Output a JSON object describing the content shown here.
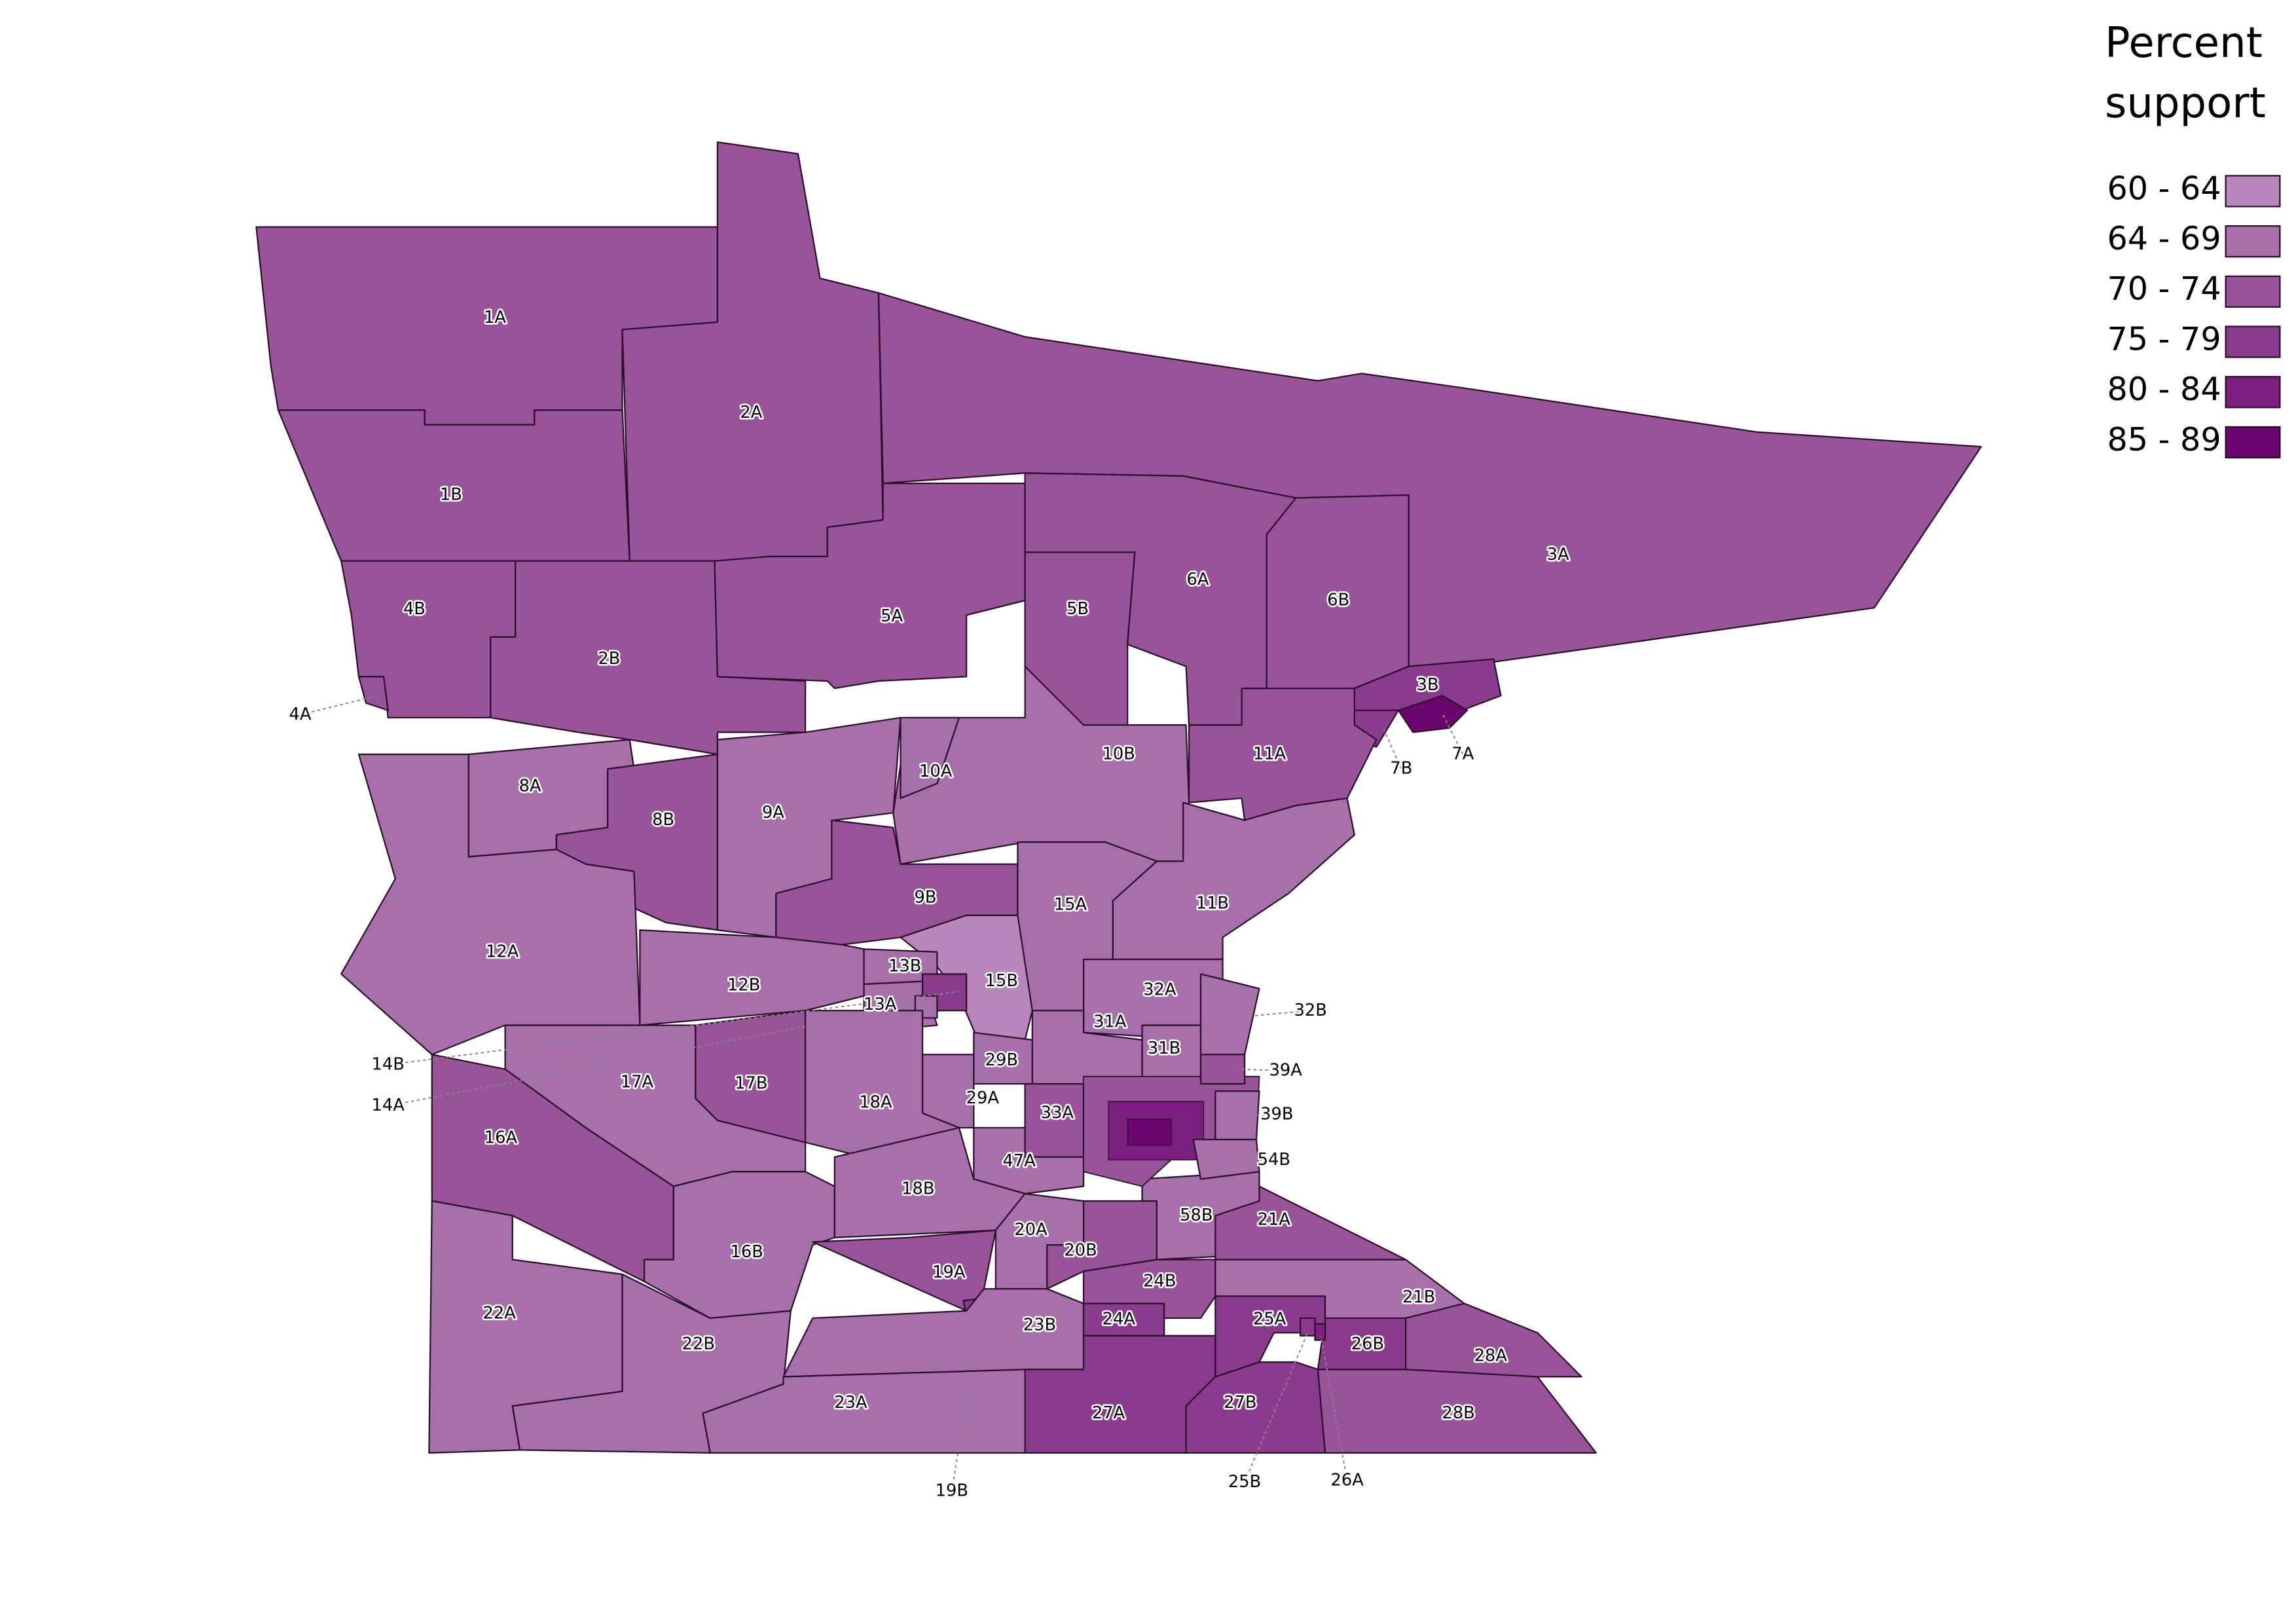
{
  "legend": {
    "title": "Percent support",
    "items": [
      {
        "label": "60 - 64",
        "color": "#b987bb"
      },
      {
        "label": "64 - 69",
        "color": "#a870aa"
      },
      {
        "label": "70 - 74",
        "color": "#985399"
      },
      {
        "label": "75 - 79",
        "color": "#8a3b8d"
      },
      {
        "label": "80 - 84",
        "color": "#7b1e80"
      },
      {
        "label": "85 - 89",
        "color": "#6b066e"
      }
    ]
  },
  "districts": [
    {
      "label": "1A",
      "color": "#985399"
    },
    {
      "label": "2A",
      "color": "#985399"
    },
    {
      "label": "1B",
      "color": "#985399"
    },
    {
      "label": "3A",
      "color": "#985399"
    },
    {
      "label": "4B",
      "color": "#985399"
    },
    {
      "label": "4A",
      "color": "#985399"
    },
    {
      "label": "2B",
      "color": "#985399"
    },
    {
      "label": "5A",
      "color": "#985399"
    },
    {
      "label": "5B",
      "color": "#985399"
    },
    {
      "label": "6A",
      "color": "#985399"
    },
    {
      "label": "6B",
      "color": "#985399"
    },
    {
      "label": "3B",
      "color": "#8a3b8d"
    },
    {
      "label": "7B",
      "color": "#8a3b8d"
    },
    {
      "label": "7A",
      "color": "#6b066e"
    },
    {
      "label": "11A",
      "color": "#985399"
    },
    {
      "label": "10B",
      "color": "#a870aa"
    },
    {
      "label": "10A",
      "color": "#a870aa"
    },
    {
      "label": "8A",
      "color": "#a870aa"
    },
    {
      "label": "8B",
      "color": "#985399"
    },
    {
      "label": "9A",
      "color": "#a870aa"
    },
    {
      "label": "9B",
      "color": "#985399"
    },
    {
      "label": "12A",
      "color": "#a870aa"
    },
    {
      "label": "11B",
      "color": "#a870aa"
    },
    {
      "label": "15A",
      "color": "#a870aa"
    },
    {
      "label": "15B",
      "color": "#b987bb"
    },
    {
      "label": "12B",
      "color": "#a870aa"
    },
    {
      "label": "13B",
      "color": "#a870aa"
    },
    {
      "label": "13A",
      "color": "#a870aa"
    },
    {
      "label": "14B",
      "color": "#8a3b8d"
    },
    {
      "label": "14A",
      "color": "#a870aa"
    },
    {
      "label": "17A",
      "color": "#a870aa"
    },
    {
      "label": "17B",
      "color": "#985399"
    },
    {
      "label": "18A",
      "color": "#a870aa"
    },
    {
      "label": "16A",
      "color": "#985399"
    },
    {
      "label": "22A",
      "color": "#a870aa"
    },
    {
      "label": "16B",
      "color": "#a870aa"
    },
    {
      "label": "22B",
      "color": "#a870aa"
    },
    {
      "label": "23A",
      "color": "#a870aa"
    },
    {
      "label": "18B",
      "color": "#a870aa"
    },
    {
      "label": "19A",
      "color": "#985399"
    },
    {
      "label": "19B",
      "color": "#8a3b8d"
    },
    {
      "label": "20A",
      "color": "#a870aa"
    },
    {
      "label": "23B",
      "color": "#a870aa"
    },
    {
      "label": "20B",
      "color": "#985399"
    },
    {
      "label": "24B",
      "color": "#985399"
    },
    {
      "label": "24A",
      "color": "#8a3b8d"
    },
    {
      "label": "27A",
      "color": "#8a3b8d"
    },
    {
      "label": "27B",
      "color": "#8a3b8d"
    },
    {
      "label": "28B",
      "color": "#985399"
    },
    {
      "label": "26B",
      "color": "#8a3b8d"
    },
    {
      "label": "25A",
      "color": "#8a3b8d"
    },
    {
      "label": "25B",
      "color": "#8a3b8d"
    },
    {
      "label": "26A",
      "color": "#7b1e80"
    },
    {
      "label": "21B",
      "color": "#a870aa"
    },
    {
      "label": "28A",
      "color": "#985399"
    },
    {
      "label": "21A",
      "color": "#985399"
    },
    {
      "label": "58B",
      "color": "#a870aa"
    },
    {
      "label": "32A",
      "color": "#a870aa"
    },
    {
      "label": "31A",
      "color": "#a870aa"
    },
    {
      "label": "31B",
      "color": "#a870aa"
    },
    {
      "label": "32B",
      "color": "#a870aa"
    },
    {
      "label": "29B",
      "color": "#a870aa"
    },
    {
      "label": "29A",
      "color": "#a870aa"
    },
    {
      "label": "47A",
      "color": "#a870aa"
    },
    {
      "label": "33A",
      "color": "#985399"
    },
    {
      "label": "39A",
      "color": "#985399"
    },
    {
      "label": "39B",
      "color": "#a870aa"
    },
    {
      "label": "54B",
      "color": "#a870aa"
    }
  ]
}
